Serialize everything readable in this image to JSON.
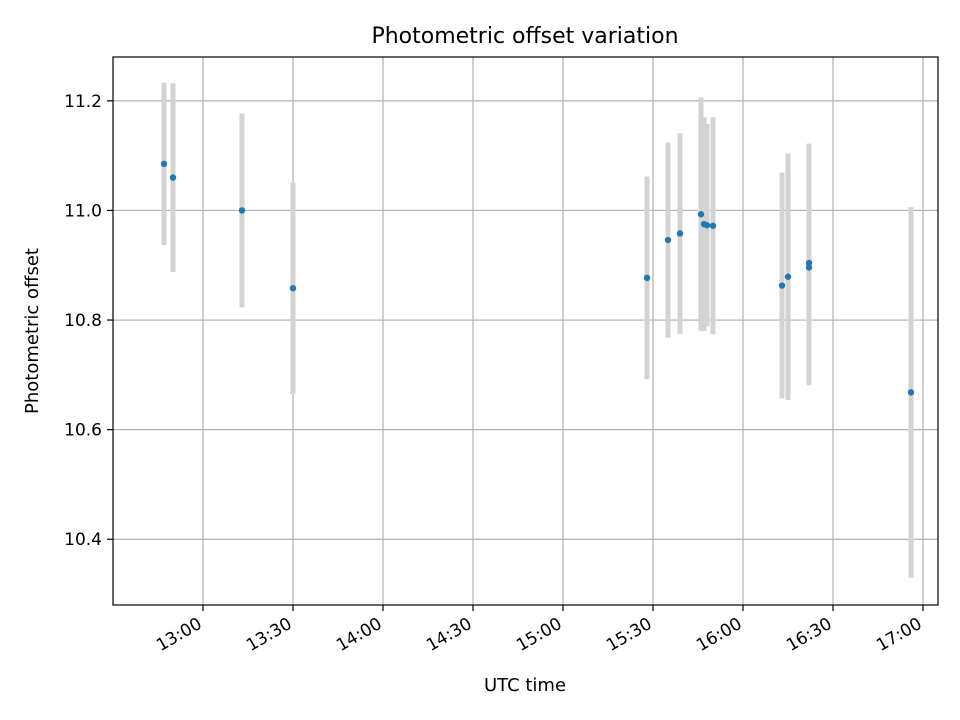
{
  "chart_data": {
    "type": "scatter",
    "title": "Photometric offset variation",
    "xlabel": "UTC time",
    "ylabel": "Photometric offset",
    "grid": true,
    "xlim": [
      "12:30",
      "17:05"
    ],
    "ylim": [
      10.28,
      11.28
    ],
    "xticks": [
      "13:00",
      "13:30",
      "14:00",
      "14:30",
      "15:00",
      "15:30",
      "16:00",
      "16:30",
      "17:00"
    ],
    "yticks": [
      "10.4",
      "10.6",
      "10.8",
      "11.0",
      "11.2"
    ],
    "colors": {
      "marker": "#1f77b4",
      "errorbar": "#d3d3d3"
    },
    "series": [
      {
        "points": [
          {
            "x": "12:47",
            "y": 11.085,
            "err": 0.148
          },
          {
            "x": "12:50",
            "y": 11.06,
            "err": 0.172
          },
          {
            "x": "13:13",
            "y": 11.0,
            "err": 0.177
          },
          {
            "x": "13:30",
            "y": 10.858,
            "err": 0.193
          },
          {
            "x": "15:28",
            "y": 10.877,
            "err": 0.185
          },
          {
            "x": "15:35",
            "y": 10.946,
            "err": 0.178
          },
          {
            "x": "15:39",
            "y": 10.958,
            "err": 0.183
          },
          {
            "x": "15:46",
            "y": 10.993,
            "err": 0.213
          },
          {
            "x": "15:47",
            "y": 10.975,
            "err": 0.195
          },
          {
            "x": "15:48",
            "y": 10.973,
            "err": 0.185
          },
          {
            "x": "15:50",
            "y": 10.972,
            "err": 0.198
          },
          {
            "x": "16:13",
            "y": 10.863,
            "err": 0.206
          },
          {
            "x": "16:15",
            "y": 10.879,
            "err": 0.225
          },
          {
            "x": "16:22",
            "y": 10.896,
            "err": 0.215
          },
          {
            "x": "16:22",
            "y": 10.904,
            "err": 0.218
          },
          {
            "x": "16:56",
            "y": 10.668,
            "err": 0.338
          }
        ]
      }
    ]
  }
}
